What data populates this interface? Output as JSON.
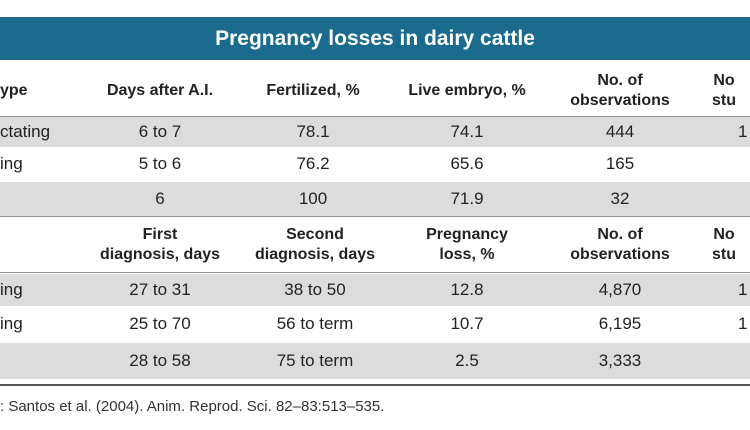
{
  "title": "Pregnancy losses in dairy cattle",
  "section1": {
    "headers": [
      "ype",
      "Days after A.I.",
      "Fertilized, %",
      "Live embryo, %",
      "No. of\nobservations",
      "No\nstu"
    ],
    "rows": [
      [
        "ctating",
        "6 to 7",
        "78.1",
        "74.1",
        "444",
        "1"
      ],
      [
        "ing",
        "5 to 6",
        "76.2",
        "65.6",
        "165",
        ""
      ],
      [
        "",
        "6",
        "100",
        "71.9",
        "32",
        ""
      ]
    ]
  },
  "section2": {
    "headers": [
      "",
      "First\ndiagnosis, days",
      "Second\ndiagnosis, days",
      "Pregnancy\nloss, %",
      "No. of\nobservations",
      "No\nstu"
    ],
    "rows": [
      [
        "ing",
        "27 to 31",
        "38 to 50",
        "12.8",
        "4,870",
        "1"
      ],
      [
        "ing",
        "25 to 70",
        "56 to term",
        "10.7",
        "6,195",
        "1"
      ],
      [
        "",
        "28 to 58",
        "75 to term",
        "2.5",
        "3,333",
        ""
      ]
    ]
  },
  "source": ": Santos et al. (2004). Anim. Reprod. Sci. 82–83:513–535."
}
